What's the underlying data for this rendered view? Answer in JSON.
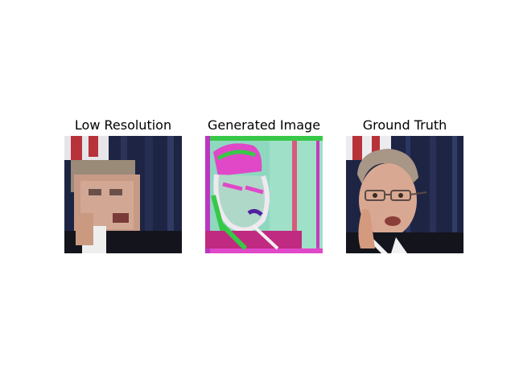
{
  "panels": [
    {
      "title": "Low Resolution"
    },
    {
      "title": "Generated Image"
    },
    {
      "title": "Ground Truth"
    }
  ],
  "colors": {
    "background": "#ffffff",
    "backdrop_navy": "#1e2544",
    "flag_red": "#b8323a",
    "skin": "#c79a86",
    "hair": "#9a8a78",
    "suit": "#14151c",
    "shirt": "#eeeeee",
    "generated_tint": "#8fd8c0",
    "generated_magenta": "#e048c8",
    "generated_green": "#38c848"
  },
  "icons": {
    "face_image": "portrait-image"
  }
}
